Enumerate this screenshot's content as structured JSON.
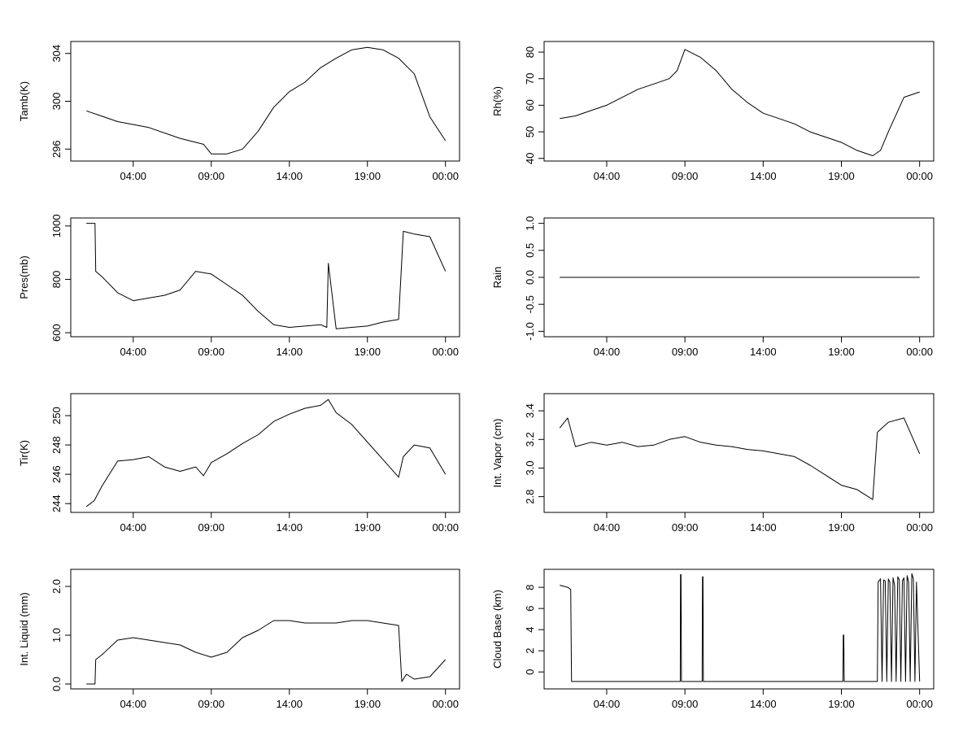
{
  "chart_data": [
    {
      "type": "line",
      "ylabel": "Tamb(K)",
      "x_ticks": [
        "04:00",
        "09:00",
        "14:00",
        "19:00",
        "00:00"
      ],
      "y_ticks": [
        296,
        300,
        304
      ],
      "ylim": [
        295,
        305
      ],
      "x": [
        1,
        3,
        5,
        7,
        8.5,
        9,
        10,
        11,
        12,
        13,
        14,
        15,
        16,
        17,
        18,
        19,
        20,
        21,
        22,
        23,
        24
      ],
      "values": [
        299.2,
        298.3,
        297.8,
        296.9,
        296.4,
        295.6,
        295.6,
        296,
        297.5,
        299.5,
        300.8,
        301.6,
        302.8,
        303.6,
        304.3,
        304.5,
        304.3,
        303.6,
        302.3,
        298.7,
        296.7
      ]
    },
    {
      "type": "line",
      "ylabel": "Rh(%)",
      "x_ticks": [
        "04:00",
        "09:00",
        "14:00",
        "19:00",
        "00:00"
      ],
      "y_ticks": [
        40,
        50,
        60,
        70,
        80
      ],
      "ylim": [
        39,
        84
      ],
      "x": [
        1,
        2,
        3,
        4,
        5,
        6,
        7,
        8,
        8.5,
        9,
        10,
        11,
        12,
        13,
        14,
        15,
        16,
        17,
        18,
        19,
        20,
        21,
        21.5,
        22,
        23,
        24
      ],
      "values": [
        55,
        56,
        58,
        60,
        63,
        66,
        68,
        70,
        73,
        81,
        78,
        73,
        66,
        61,
        57,
        55,
        53,
        50,
        48,
        46,
        43,
        41,
        43,
        50,
        63,
        65
      ]
    },
    {
      "type": "line",
      "ylabel": "Pres(mb)",
      "x_ticks": [
        "04:00",
        "09:00",
        "14:00",
        "19:00",
        "00:00"
      ],
      "y_ticks": [
        600,
        800,
        1000
      ],
      "ylim": [
        585,
        1030
      ],
      "x": [
        1,
        1.55,
        1.6,
        2,
        3,
        4,
        5,
        6,
        7,
        8,
        9,
        10,
        11,
        12,
        13,
        14,
        15,
        16,
        16.4,
        16.5,
        17,
        18,
        19,
        20,
        21,
        21.3,
        22,
        23,
        24
      ],
      "values": [
        1010,
        1010,
        830,
        810,
        750,
        720,
        730,
        740,
        760,
        830,
        820,
        780,
        740,
        680,
        630,
        620,
        625,
        630,
        620,
        860,
        615,
        620,
        625,
        640,
        650,
        980,
        970,
        960,
        830
      ]
    },
    {
      "type": "line",
      "ylabel": "Rain",
      "x_ticks": [
        "04:00",
        "09:00",
        "14:00",
        "19:00",
        "00:00"
      ],
      "y_ticks": [
        "-1.0",
        "-0.5",
        "0.0",
        "0.5",
        "1.0"
      ],
      "ylim": [
        -1.1,
        1.1
      ],
      "x": [
        1,
        24
      ],
      "values": [
        0,
        0
      ]
    },
    {
      "type": "line",
      "ylabel": "Tir(K)",
      "x_ticks": [
        "04:00",
        "09:00",
        "14:00",
        "19:00",
        "00:00"
      ],
      "y_ticks": [
        244,
        246,
        248,
        250
      ],
      "ylim": [
        243.4,
        251.5
      ],
      "x": [
        1,
        1.5,
        2,
        3,
        4,
        5,
        6,
        7,
        8,
        8.5,
        9,
        10,
        11,
        12,
        13,
        14,
        15,
        16,
        16.5,
        17,
        18,
        19,
        20,
        21,
        21.3,
        22,
        23,
        24
      ],
      "values": [
        243.8,
        244.2,
        245.2,
        246.9,
        247.0,
        247.2,
        246.5,
        246.2,
        246.5,
        245.9,
        246.8,
        247.4,
        248.1,
        248.7,
        249.6,
        250.1,
        250.5,
        250.7,
        251.1,
        250.2,
        249.4,
        248.2,
        247.0,
        245.8,
        247.2,
        248.0,
        247.8,
        246.0
      ]
    },
    {
      "type": "line",
      "ylabel": "Int. Vapor (cm)",
      "x_ticks": [
        "04:00",
        "09:00",
        "14:00",
        "19:00",
        "00:00"
      ],
      "y_ticks": [
        "2.8",
        "3.0",
        "3.2",
        "3.4"
      ],
      "ylim": [
        2.69,
        3.52
      ],
      "x": [
        1,
        1.5,
        2,
        3,
        4,
        5,
        6,
        7,
        8,
        9,
        10,
        11,
        12,
        13,
        14,
        15,
        16,
        17,
        18,
        19,
        20,
        21,
        21.3,
        22,
        23,
        24
      ],
      "values": [
        3.28,
        3.35,
        3.15,
        3.18,
        3.16,
        3.18,
        3.15,
        3.16,
        3.2,
        3.22,
        3.18,
        3.16,
        3.15,
        3.13,
        3.12,
        3.1,
        3.08,
        3.02,
        2.95,
        2.88,
        2.85,
        2.78,
        3.25,
        3.32,
        3.35,
        3.1
      ]
    },
    {
      "type": "line",
      "ylabel": "Int. Liquid (mm)",
      "x_ticks": [
        "04:00",
        "09:00",
        "14:00",
        "19:00",
        "00:00"
      ],
      "y_ticks": [
        "0.0",
        "1.0",
        "2.0"
      ],
      "ylim": [
        -0.1,
        2.35
      ],
      "x": [
        1,
        1.55,
        1.6,
        2,
        3,
        4,
        5,
        6,
        7,
        8,
        9,
        10,
        11,
        12,
        13,
        14,
        15,
        16,
        17,
        18,
        19,
        20,
        21,
        21.2,
        21.5,
        22,
        23,
        24
      ],
      "values": [
        0,
        0,
        0.5,
        0.6,
        0.9,
        0.95,
        0.9,
        0.85,
        0.8,
        0.65,
        0.55,
        0.65,
        0.95,
        1.1,
        1.3,
        1.3,
        1.25,
        1.25,
        1.25,
        1.3,
        1.3,
        1.25,
        1.2,
        0.05,
        0.2,
        0.1,
        0.15,
        0.5
      ]
    },
    {
      "type": "line",
      "ylabel": "Cloud Base (km)",
      "x_ticks": [
        "04:00",
        "09:00",
        "14:00",
        "19:00",
        "00:00"
      ],
      "y_ticks": [
        0,
        2,
        4,
        6,
        8
      ],
      "ylim": [
        -1.6,
        9.7
      ],
      "x": [
        1,
        1.5,
        1.7,
        1.75,
        8.7,
        8.72,
        8.75,
        8.78,
        10.1,
        10.12,
        10.15,
        10.18,
        19.1,
        19.12,
        19.15,
        19.18,
        21.3,
        21.35,
        21.5,
        21.6,
        21.7,
        21.8,
        21.9,
        22.0,
        22.1,
        22.2,
        22.3,
        22.4,
        22.5,
        22.6,
        22.7,
        22.8,
        22.9,
        23.0,
        23.1,
        23.2,
        23.3,
        23.4,
        23.5,
        23.6,
        23.7,
        23.8,
        24
      ],
      "values": [
        8.2,
        8.0,
        7.8,
        -0.9,
        -0.9,
        9.2,
        9.2,
        -0.9,
        -0.9,
        9.0,
        9.0,
        -0.9,
        -0.9,
        3.5,
        3.5,
        -0.9,
        -0.9,
        8.5,
        8.8,
        -0.9,
        8.7,
        8.6,
        -0.9,
        8.8,
        8.5,
        -0.9,
        8.9,
        8.2,
        -0.9,
        9.0,
        8.7,
        -0.9,
        8.6,
        8.9,
        -0.9,
        9.1,
        8.5,
        -0.9,
        9.3,
        8.8,
        -0.9,
        8.5,
        -0.9
      ]
    }
  ]
}
